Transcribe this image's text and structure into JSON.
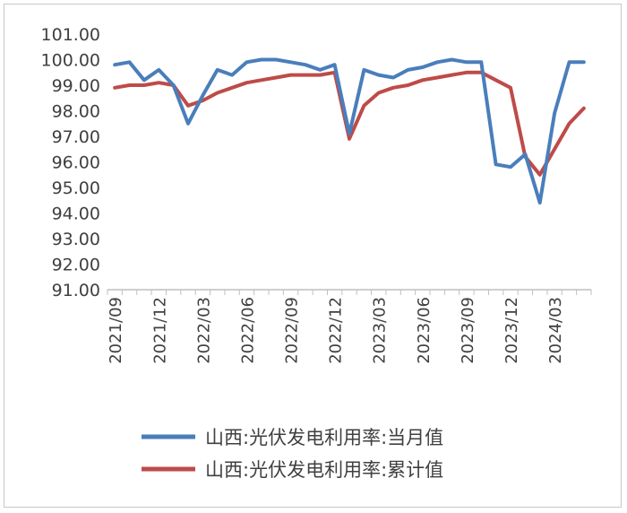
{
  "chart_data": {
    "type": "line",
    "title": "",
    "xlabel": "",
    "ylabel": "",
    "ylim": [
      91,
      101
    ],
    "y_ticks": [
      "91.00",
      "92.00",
      "93.00",
      "94.00",
      "95.00",
      "96.00",
      "97.00",
      "98.00",
      "99.00",
      "100.00",
      "101.00"
    ],
    "x_tick_labels": [
      "2021/09",
      "2021/12",
      "2022/03",
      "2022/06",
      "2022/09",
      "2022/12",
      "2023/03",
      "2023/06",
      "2023/09",
      "2023/12",
      "2024/03"
    ],
    "x": [
      "2021/09",
      "2021/10",
      "2021/11",
      "2021/12",
      "2022/01",
      "2022/02",
      "2022/03",
      "2022/04",
      "2022/05",
      "2022/06",
      "2022/07",
      "2022/08",
      "2022/09",
      "2022/10",
      "2022/11",
      "2022/12",
      "2023/01",
      "2023/02",
      "2023/03",
      "2023/04",
      "2023/05",
      "2023/06",
      "2023/07",
      "2023/08",
      "2023/09",
      "2023/10",
      "2023/11",
      "2023/12",
      "2024/01",
      "2024/02",
      "2024/03",
      "2024/04",
      "2024/05"
    ],
    "grid": false,
    "legend_position": "bottom",
    "series": [
      {
        "name": "山西:光伏发电利用率:当月值",
        "color": "#4a7ebb",
        "values": [
          99.8,
          99.9,
          99.2,
          99.6,
          99.0,
          97.5,
          98.6,
          99.6,
          99.4,
          99.9,
          100.0,
          100.0,
          99.9,
          99.8,
          99.6,
          99.8,
          97.1,
          99.6,
          99.4,
          99.3,
          99.6,
          99.7,
          99.9,
          100.0,
          99.9,
          99.9,
          95.9,
          95.8,
          96.3,
          94.4,
          97.9,
          99.9,
          99.9
        ]
      },
      {
        "name": "山西:光伏发电利用率:累计值",
        "color": "#be4b48",
        "values": [
          98.9,
          99.0,
          99.0,
          99.1,
          99.0,
          98.2,
          98.4,
          98.7,
          98.9,
          99.1,
          99.2,
          99.3,
          99.4,
          99.4,
          99.4,
          99.5,
          96.9,
          98.2,
          98.7,
          98.9,
          99.0,
          99.2,
          99.3,
          99.4,
          99.5,
          99.5,
          99.2,
          98.9,
          96.2,
          95.5,
          96.5,
          97.5,
          98.1
        ]
      }
    ]
  }
}
